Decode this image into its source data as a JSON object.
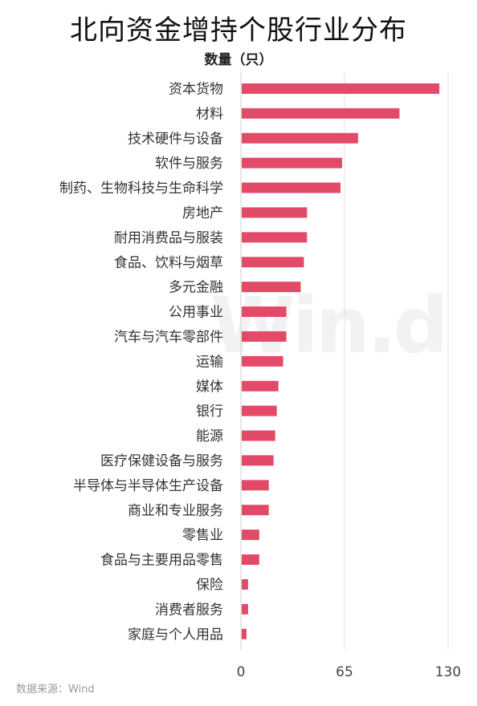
{
  "chart_data": {
    "type": "bar",
    "orientation": "horizontal",
    "title": "北向资金增持个股行业分布",
    "subtitle": "数量（只）",
    "categories": [
      "资本货物",
      "材料",
      "技术硬件与设备",
      "软件与服务",
      "制药、生物科技与生命科学",
      "房地产",
      "耐用消费品与服装",
      "食品、饮料与烟草",
      "多元金融",
      "公用事业",
      "汽车与汽车零部件",
      "运输",
      "媒体",
      "银行",
      "能源",
      "医疗保健设备与服务",
      "半导体与半导体生产设备",
      "商业和专业服务",
      "零售业",
      "食品与主要用品零售",
      "保险",
      "消费者服务",
      "家庭与个人用品"
    ],
    "values": [
      124,
      99,
      73,
      63,
      62,
      41,
      41,
      39,
      37,
      28,
      28,
      26,
      23,
      22,
      21,
      20,
      17,
      17,
      11,
      11,
      4,
      4,
      3
    ],
    "xlim": [
      0,
      130
    ],
    "xticks": [
      "0",
      "65",
      "130"
    ],
    "bar_color": "#e24a68",
    "grid": true
  },
  "watermark": "Win.d",
  "source": "数据来源：Wind"
}
